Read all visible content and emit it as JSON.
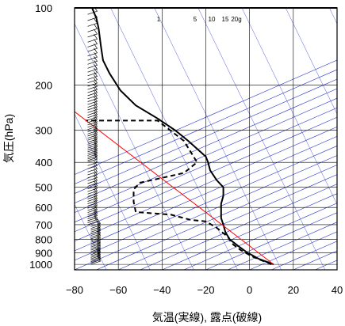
{
  "chart_data": {
    "type": "line",
    "title": "",
    "xlabel": "気温(実線), 露点(破線)",
    "ylabel": "気圧(hPa)",
    "xlim": [
      -80,
      40
    ],
    "ylim": [
      1050,
      100
    ],
    "y_scale": "log",
    "grid": true,
    "xticks": [
      -80,
      -60,
      -40,
      -20,
      0,
      20,
      40
    ],
    "yticks": [
      100,
      200,
      300,
      400,
      500,
      600,
      700,
      800,
      900,
      1000
    ],
    "mixing_ratio_labels": [
      "1",
      "5",
      "10",
      "15",
      "20g"
    ],
    "series": [
      {
        "kind": "temperature",
        "style": "solid",
        "color": "#000000",
        "points": [
          [
            11,
            1000
          ],
          [
            4,
            950
          ],
          [
            -1,
            900
          ],
          [
            -5,
            850
          ],
          [
            -9,
            800
          ],
          [
            -11,
            750
          ],
          [
            -12,
            700
          ],
          [
            -13,
            660
          ],
          [
            -13,
            620
          ],
          [
            -13,
            580
          ],
          [
            -12,
            540
          ],
          [
            -12,
            500
          ],
          [
            -15,
            470
          ],
          [
            -18,
            430
          ],
          [
            -19,
            400
          ],
          [
            -20,
            380
          ],
          [
            -28,
            330
          ],
          [
            -34,
            300
          ],
          [
            -42,
            270
          ],
          [
            -52,
            240
          ],
          [
            -59,
            210
          ],
          [
            -64,
            180
          ],
          [
            -67,
            160
          ],
          [
            -68,
            140
          ],
          [
            -69,
            120
          ],
          [
            -70,
            110
          ],
          [
            -72,
            100
          ]
        ]
      },
      {
        "kind": "dewpoint",
        "style": "dashed",
        "color": "#000000",
        "points": [
          [
            10,
            1000
          ],
          [
            1,
            930
          ],
          [
            -4,
            880
          ],
          [
            -8,
            830
          ],
          [
            -10,
            780
          ],
          [
            -15,
            720
          ],
          [
            -20,
            680
          ],
          [
            -27,
            670
          ],
          [
            -36,
            640
          ],
          [
            -52,
            625
          ],
          [
            -53,
            570
          ],
          [
            -53,
            510
          ],
          [
            -50,
            480
          ],
          [
            -40,
            460
          ],
          [
            -30,
            440
          ],
          [
            -24,
            400
          ],
          [
            -30,
            330
          ],
          [
            -42,
            275
          ],
          [
            -75,
            275
          ]
        ]
      },
      {
        "kind": "parcel",
        "style": "solid",
        "color": "#ff0000",
        "points": [
          [
            11,
            1000
          ],
          [
            -81,
            250
          ]
        ]
      }
    ]
  }
}
